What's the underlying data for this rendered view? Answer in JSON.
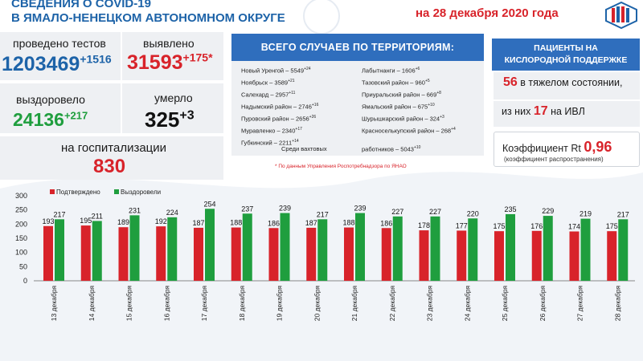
{
  "header": {
    "title_line1": "СВЕДЕНИЯ О COVID-19",
    "title_line2": "В ЯМАЛО-НЕНЕЦКОМ АВТОНОМНОМ ОКРУГЕ",
    "date": "на 28 декабря 2020 года"
  },
  "stats": {
    "tests": {
      "label": "проведено тестов",
      "value": "1203469",
      "delta": "+1516"
    },
    "detected": {
      "label": "выявлено",
      "value": "31593",
      "delta": "+175*"
    },
    "recovered": {
      "label": "выздоровело",
      "value": "24136",
      "delta": "+217"
    },
    "died": {
      "label": "умерло",
      "value": "325",
      "delta": "+3"
    },
    "hospitalized": {
      "label": "на госпитализации",
      "value": "830"
    }
  },
  "territories": {
    "title": "ВСЕГО СЛУЧАЕВ ПО ТЕРРИТОРИЯМ:",
    "left": [
      {
        "name": "Новый Уренгой – 5549",
        "delta": "+24"
      },
      {
        "name": "Ноябрьск – 3589",
        "delta": "+21"
      },
      {
        "name": "Салехард – 2957",
        "delta": "+11"
      },
      {
        "name": "Надымский район – 2746",
        "delta": "+16"
      },
      {
        "name": "Пуровский район – 2656",
        "delta": "+26"
      },
      {
        "name": "Муравленко – 2340",
        "delta": "+17"
      },
      {
        "name": "Губкинский – 2211",
        "delta": "+14"
      }
    ],
    "right": [
      {
        "name": "Лабытнанги – 1606",
        "delta": "+6"
      },
      {
        "name": "Тазовский район – 960",
        "delta": "+5"
      },
      {
        "name": "Приуральский район – 669",
        "delta": "+8"
      },
      {
        "name": "Ямальский район – 675",
        "delta": "+10"
      },
      {
        "name": "Шурышкарский район – 324",
        "delta": "+3"
      },
      {
        "name": "Красноселькупский район – 268",
        "delta": "+4"
      }
    ],
    "shift_label": "Среди вахтовых",
    "shift_value": "работников – 5043",
    "shift_delta": "+10",
    "footnote": "* По данным Управления  Роспотребнадзора по ЯНАО"
  },
  "oxygen": {
    "title_line1": "ПАЦИЕНТЫ НА",
    "title_line2": "КИСЛОРОДНОЙ ПОДДЕРЖКЕ",
    "severe_value": "56",
    "severe_label": "в тяжелом состоянии,",
    "ivl_prefix": "из них",
    "ivl_value": "17",
    "ivl_suffix": "на  ИВЛ",
    "rt_label": "Коэффициент Rt",
    "rt_value": "0,96",
    "rt_note": "(коэффициент распространения)"
  },
  "chart_data": {
    "type": "bar",
    "categories": [
      "13 декабря",
      "14 декабря",
      "15 декабря",
      "16 декабря",
      "17 декабря",
      "18 декабря",
      "19 декабря",
      "20 декабря",
      "21 декабря",
      "22 декабря",
      "23 декабря",
      "24 декабря",
      "25 декабря",
      "26 декабря",
      "27 декабря",
      "28 декабря"
    ],
    "series": [
      {
        "name": "Подтверждено",
        "color": "#d8232a",
        "values": [
          193,
          195,
          189,
          192,
          187,
          188,
          186,
          187,
          188,
          186,
          178,
          177,
          175,
          176,
          174,
          175
        ]
      },
      {
        "name": "Выздоровели",
        "color": "#1f9e3e",
        "values": [
          217,
          211,
          231,
          224,
          254,
          237,
          239,
          217,
          239,
          227,
          227,
          220,
          235,
          229,
          219,
          217
        ]
      }
    ],
    "ylim": [
      0,
      300
    ],
    "yticks": [
      0,
      50,
      100,
      150,
      200,
      250,
      300
    ],
    "legend": "top-left",
    "grid": false
  }
}
